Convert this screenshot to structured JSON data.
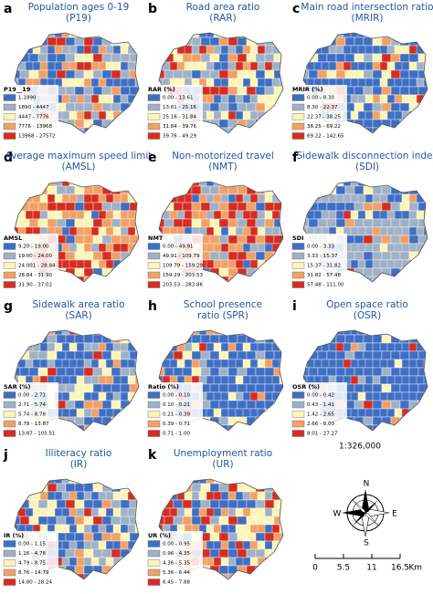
{
  "palette": [
    "#3f6fc4",
    "#9fb1c6",
    "#fdf5b8",
    "#f2a066",
    "#d62c22"
  ],
  "panels": [
    {
      "letter": "a",
      "title": [
        "Population ages 0-19",
        "(P19)"
      ],
      "legend_title": "P19__19",
      "legend": [
        "1-1890",
        "1890 - 4447",
        "4447 - 7776",
        "7776 - 13968",
        "13968 - 27572"
      ]
    },
    {
      "letter": "b",
      "title": [
        "Road area ratio",
        "(RAR)"
      ],
      "legend_title": "RAR (%)",
      "legend": [
        "0.00 - 13.61",
        "13.61 - 25.16",
        "25.16 - 31.84",
        "31.84 - 39.76",
        "39.76 - 49.29"
      ]
    },
    {
      "letter": "c",
      "title": [
        "Main road intersection ratio",
        "(MRIR)"
      ],
      "legend_title": "MRIR (%)",
      "legend": [
        "0.00 - 8.30",
        "8.30 - 22.37",
        "22.37 - 38.25",
        "38.25 - 69.22",
        "69.22 - 142.65"
      ]
    },
    {
      "letter": "d",
      "title": [
        "Average maximum speed limit",
        "(AMSL)"
      ],
      "legend_title": "AMSL",
      "legend": [
        "9.20 - 19.00",
        "19.00 - 24.00",
        "24.001 - 28.84",
        "28.84 - 31.90",
        "31.90 - 37.02"
      ]
    },
    {
      "letter": "e",
      "title": [
        "Non-motorized travel",
        "(NMT)"
      ],
      "legend_title": "NMT",
      "legend": [
        "0.00 - 49.91",
        "49.91 - 109.79",
        "109.79 - 159.29",
        "159.29 - 203.53",
        "203.53 - 283.86"
      ]
    },
    {
      "letter": "f",
      "title": [
        "Sidewalk disconnection index",
        "(SDI)"
      ],
      "legend_title": "SDI",
      "legend": [
        "0.00 - 3.33",
        "3.33 - 15.37",
        "15.37 - 31.82",
        "31.82 - 57.48",
        "57.48 - 111.00"
      ]
    },
    {
      "letter": "g",
      "title": [
        "Sidewalk area ratio",
        "(SAR)"
      ],
      "legend_title": "SAR (%)",
      "legend": [
        "0.00 - 2.71",
        "2.71 - 5.74",
        "5.74 - 8.78",
        "8.78 - 13.87",
        "13.87 - 105.51"
      ]
    },
    {
      "letter": "h",
      "title": [
        "School presence",
        "ratio (SPR)"
      ],
      "legend_title": "Ratio (%)",
      "legend": [
        "0.00 - 0.10",
        "0.10 - 0.21",
        "0.21 - 0.39",
        "0.39 - 0.71",
        "0.71 - 1.00"
      ]
    },
    {
      "letter": "i",
      "title": [
        "Open space ratio",
        "(OSR)"
      ],
      "legend_title": "OSR (%)",
      "legend": [
        "0.00 - 0.42",
        "0.43 - 1.41",
        "1.42 - 2.65",
        "2.66 - 8.00",
        "8.01 - 27.27"
      ]
    },
    {
      "letter": "j",
      "title": [
        "Illiteracy ratio",
        "(IR)"
      ],
      "legend_title": "IR (%)",
      "legend": [
        "0.00 - 1.15",
        "1.16 - 4.78",
        "4.79 - 8.75",
        "8.76 - 14.79",
        "14.80 - 28.24"
      ]
    },
    {
      "letter": "k",
      "title": [
        "Unemployment ratio",
        "(UR)"
      ],
      "legend_title": "UR (%)",
      "legend": [
        "0.00 - 0.95",
        "0.96 - 4.35",
        "4.36 - 5.35",
        "5.36 - 6.44",
        "6.45 - 7.88"
      ]
    }
  ],
  "scale_ratio": "1:326,000",
  "compass": {
    "n": "N",
    "s": "S",
    "e": "E",
    "w": "W"
  },
  "scale_bar": {
    "labels": [
      "0",
      "5.5",
      "11",
      "16.5"
    ],
    "unit": "Km"
  }
}
